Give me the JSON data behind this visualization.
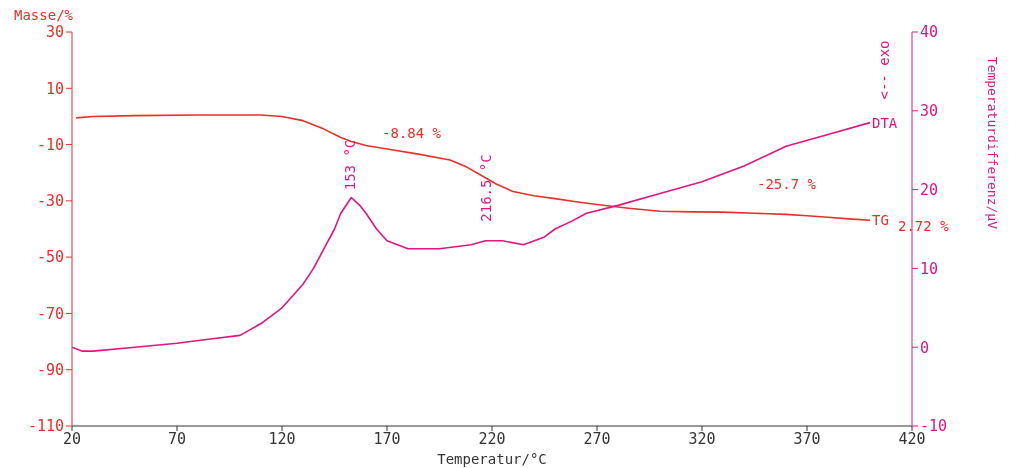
{
  "chart_data": {
    "type": "line",
    "xlabel": "Temperatur/°C",
    "ylabel": "Masse/%",
    "y2label": "Temperaturdifferenz/µV",
    "xlim": [
      20,
      420
    ],
    "xticks": [
      20,
      70,
      120,
      170,
      220,
      270,
      320,
      370,
      420
    ],
    "ylim": [
      -110,
      30
    ],
    "yticks": [
      -110,
      -90,
      -70,
      -50,
      -30,
      -10,
      10,
      30
    ],
    "y2lim": [
      -10,
      40
    ],
    "y2ticks": [
      -10,
      0,
      10,
      20,
      30,
      40
    ],
    "marker": "none",
    "line_style": "solid",
    "series": [
      {
        "name": "TG",
        "color": "#e8302a",
        "x": [
          22,
          30,
          50,
          80,
          110,
          120,
          130,
          140,
          148,
          153,
          160,
          170,
          185,
          200,
          208,
          215,
          222,
          230,
          240,
          250,
          260,
          270,
          285,
          300,
          315,
          330,
          345,
          360,
          370,
          380,
          390,
          400
        ],
        "values": [
          -0.5,
          0,
          0.3,
          0.5,
          0.5,
          0,
          -1.5,
          -4.5,
          -7.5,
          -8.9,
          -10.3,
          -11.6,
          -13.4,
          -15.5,
          -18,
          -21,
          -24,
          -26.7,
          -28.2,
          -29.2,
          -30.3,
          -31.3,
          -32.6,
          -33.7,
          -33.9,
          -34,
          -34.4,
          -34.8,
          -35.3,
          -35.8,
          -36.4,
          -36.9
        ]
      },
      {
        "name": "DTA",
        "color": "#e0157f",
        "axis": "y2",
        "x": [
          20,
          25,
          30,
          50,
          70,
          85,
          100,
          110,
          120,
          125,
          130,
          135,
          140,
          145,
          148,
          153,
          157,
          160,
          165,
          170,
          180,
          195,
          210,
          217,
          225,
          235,
          245,
          250,
          258,
          265,
          280,
          300,
          320,
          340,
          360,
          380,
          400
        ],
        "values": [
          0,
          -0.5,
          -0.5,
          0,
          0.5,
          1,
          1.5,
          3,
          5,
          6.5,
          8,
          10,
          12.5,
          15,
          17,
          19,
          18,
          17,
          15,
          13.5,
          12.5,
          12.5,
          13,
          13.5,
          13.5,
          13,
          14,
          15,
          16,
          17,
          18,
          19.5,
          21,
          23,
          25.5,
          27,
          28.5
        ]
      }
    ],
    "annotations": [
      "-8.84 %",
      "-25.7 %",
      "2.72 %",
      "153 °C",
      "216.5 °C",
      "<-- exo"
    ]
  }
}
